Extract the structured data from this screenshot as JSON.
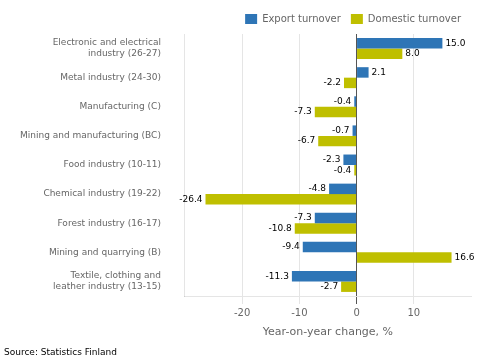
{
  "chart_data": {
    "type": "bar",
    "orientation": "horizontal",
    "categories": [
      "Electronic and electrical\nindustry (26-27)",
      "Metal industry (24-30)",
      "Manufacturing (C)",
      "Mining and manufacturing (BC)",
      "Food industry (10-11)",
      "Chemical industry (19-22)",
      "Forest industry (16-17)",
      "Mining and quarrying (B)",
      "Textile, clothing and\nleather industry (13-15)"
    ],
    "series": [
      {
        "name": "Export turnover",
        "color": "#2E75B6",
        "values": [
          15.0,
          2.1,
          -0.4,
          -0.7,
          -2.3,
          -4.8,
          -7.3,
          -9.4,
          -11.3
        ],
        "value_labels": [
          "15.0",
          "2.1",
          "-0.4",
          "-0.7",
          "-2.3",
          "-4.8",
          "-7.3",
          "-9.4",
          "-11.3"
        ]
      },
      {
        "name": "Domestic turnover",
        "color": "#BFBF00",
        "values": [
          8.0,
          -2.2,
          -7.3,
          -6.7,
          -0.4,
          -26.4,
          -10.8,
          16.6,
          -2.7
        ],
        "value_labels": [
          "8.0",
          "-2.2",
          "-7.3",
          "-6.7",
          "-0.4",
          "-26.4",
          "-10.8",
          "16.6",
          "-2.7"
        ]
      }
    ],
    "xlabel": "Year-on-year change, %",
    "xlim": [
      -30,
      20
    ],
    "xticks": [
      -20,
      -10,
      0,
      10
    ],
    "grid": true,
    "legend": "upper right",
    "data_labels": true,
    "annotations": [
      "Source: Statistics Finland"
    ]
  }
}
